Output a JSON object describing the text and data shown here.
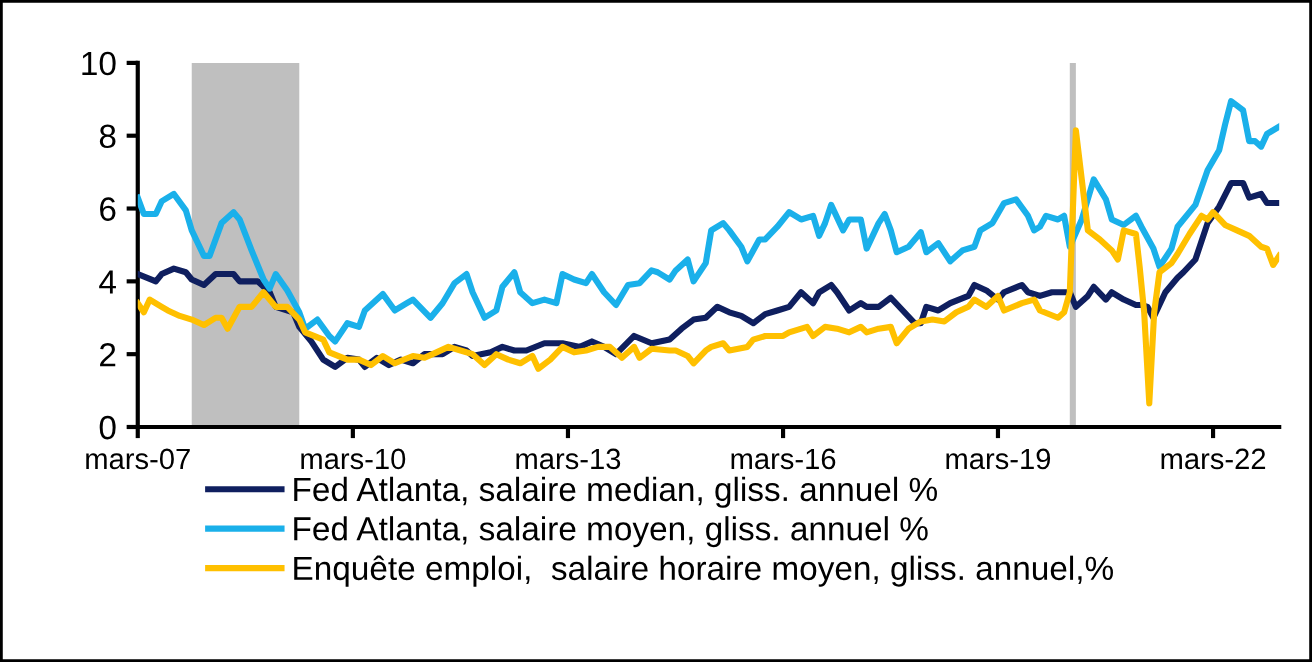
{
  "chart_data": {
    "type": "line",
    "xlim": [
      "2007-03",
      "2023-02"
    ],
    "xticks": [
      {
        "value": "2007-03",
        "label": "mars-07"
      },
      {
        "value": "2010-03",
        "label": "mars-10"
      },
      {
        "value": "2013-03",
        "label": "mars-13"
      },
      {
        "value": "2016-03",
        "label": "mars-16"
      },
      {
        "value": "2019-03",
        "label": "mars-19"
      },
      {
        "value": "2022-03",
        "label": "mars-22"
      }
    ],
    "ylim": [
      0,
      10
    ],
    "yticks": [
      0,
      2,
      4,
      6,
      8,
      10
    ],
    "grid": false,
    "legend": "bottom",
    "line_style": "solid",
    "marker": "none",
    "bands": [
      {
        "axis": "x",
        "from": "2007-12",
        "to": "2009-06",
        "color": "#bfbfbf"
      },
      {
        "axis": "x",
        "from": "2020-03",
        "to": "2020-04",
        "color": "#bfbfbf"
      }
    ],
    "series": [
      {
        "name": "Fed Atlanta, salaire median, gliss. annuel %",
        "color": "#0f1f5f",
        "x": [
          "2007-03",
          "2007-06",
          "2007-07",
          "2007-09",
          "2007-11",
          "2007-12",
          "2008-02",
          "2008-04",
          "2008-07",
          "2008-08",
          "2008-11",
          "2009-01",
          "2009-02",
          "2009-05",
          "2009-06",
          "2009-08",
          "2009-10",
          "2009-12",
          "2010-02",
          "2010-04",
          "2010-05",
          "2010-07",
          "2010-09",
          "2010-11",
          "2011-01",
          "2011-03",
          "2011-06",
          "2011-08",
          "2011-10",
          "2011-11",
          "2012-02",
          "2012-04",
          "2012-06",
          "2012-08",
          "2012-11",
          "2013-02",
          "2013-05",
          "2013-07",
          "2013-09",
          "2013-11",
          "2014-02",
          "2014-05",
          "2014-08",
          "2014-10",
          "2014-12",
          "2015-02",
          "2015-04",
          "2015-06",
          "2015-08",
          "2015-10",
          "2015-12",
          "2016-02",
          "2016-04",
          "2016-06",
          "2016-08",
          "2016-09",
          "2016-11",
          "2016-12",
          "2017-02",
          "2017-04",
          "2017-05",
          "2017-07",
          "2017-09",
          "2017-11",
          "2018-01",
          "2018-02",
          "2018-03",
          "2018-05",
          "2018-07",
          "2018-10",
          "2018-11",
          "2019-01",
          "2019-03",
          "2019-04",
          "2019-07",
          "2019-08",
          "2019-10",
          "2019-12",
          "2020-01",
          "2020-03",
          "2020-04",
          "2020-06",
          "2020-07",
          "2020-09",
          "2020-10",
          "2020-12",
          "2021-02",
          "2021-03",
          "2021-04",
          "2021-05",
          "2021-07",
          "2021-09",
          "2021-10",
          "2021-12",
          "2022-02",
          "2022-04",
          "2022-06",
          "2022-08",
          "2022-09",
          "2022-11",
          "2022-12",
          "2023-02"
        ],
        "values": [
          4.2,
          4.0,
          4.2,
          4.35,
          4.25,
          4.05,
          3.9,
          4.2,
          4.2,
          4.0,
          4.0,
          3.7,
          3.3,
          3.15,
          2.75,
          2.35,
          1.85,
          1.65,
          1.9,
          1.85,
          1.65,
          1.9,
          1.7,
          1.85,
          1.75,
          2.0,
          2.0,
          2.2,
          2.1,
          1.95,
          2.05,
          2.2,
          2.1,
          2.1,
          2.3,
          2.3,
          2.2,
          2.35,
          2.2,
          2.0,
          2.5,
          2.3,
          2.4,
          2.7,
          2.95,
          3.0,
          3.3,
          3.15,
          3.05,
          2.85,
          3.1,
          3.2,
          3.3,
          3.7,
          3.4,
          3.7,
          3.9,
          3.7,
          3.2,
          3.4,
          3.3,
          3.3,
          3.55,
          3.2,
          2.85,
          2.85,
          3.3,
          3.2,
          3.4,
          3.6,
          3.9,
          3.75,
          3.5,
          3.7,
          3.9,
          3.7,
          3.6,
          3.7,
          3.7,
          3.7,
          3.3,
          3.6,
          3.85,
          3.5,
          3.7,
          3.5,
          3.35,
          3.35,
          3.3,
          3.0,
          3.7,
          4.1,
          4.25,
          4.6,
          5.6,
          6.05,
          6.7,
          6.7,
          6.3,
          6.4,
          6.15,
          6.15
        ]
      },
      {
        "name": "Fed Atlanta, salaire moyen, gliss. annuel %",
        "color": "#1ab0ea",
        "x": [
          "2007-03",
          "2007-04",
          "2007-06",
          "2007-07",
          "2007-09",
          "2007-11",
          "2007-12",
          "2008-02",
          "2008-03",
          "2008-05",
          "2008-07",
          "2008-08",
          "2008-10",
          "2008-12",
          "2009-01",
          "2009-02",
          "2009-04",
          "2009-06",
          "2009-07",
          "2009-09",
          "2009-11",
          "2009-12",
          "2010-02",
          "2010-04",
          "2010-05",
          "2010-08",
          "2010-10",
          "2010-12",
          "2011-01",
          "2011-04",
          "2011-06",
          "2011-08",
          "2011-10",
          "2011-11",
          "2012-01",
          "2012-03",
          "2012-04",
          "2012-06",
          "2012-07",
          "2012-09",
          "2012-11",
          "2013-01",
          "2013-02",
          "2013-04",
          "2013-06",
          "2013-07",
          "2013-09",
          "2013-11",
          "2014-01",
          "2014-03",
          "2014-05",
          "2014-06",
          "2014-08",
          "2014-09",
          "2014-11",
          "2014-12",
          "2015-02",
          "2015-03",
          "2015-05",
          "2015-06",
          "2015-08",
          "2015-09",
          "2015-11",
          "2015-12",
          "2016-02",
          "2016-04",
          "2016-06",
          "2016-08",
          "2016-09",
          "2016-10",
          "2016-11",
          "2017-01",
          "2017-02",
          "2017-04",
          "2017-05",
          "2017-07",
          "2017-08",
          "2017-09",
          "2017-10",
          "2017-12",
          "2018-02",
          "2018-03",
          "2018-05",
          "2018-07",
          "2018-09",
          "2018-11",
          "2018-12",
          "2019-02",
          "2019-04",
          "2019-06",
          "2019-08",
          "2019-09",
          "2019-10",
          "2019-11",
          "2020-01",
          "2020-02",
          "2020-03",
          "2020-05",
          "2020-07",
          "2020-09",
          "2020-10",
          "2020-12",
          "2021-02",
          "2021-03",
          "2021-05",
          "2021-06",
          "2021-08",
          "2021-09",
          "2021-12",
          "2022-02",
          "2022-04",
          "2022-05",
          "2022-06",
          "2022-08",
          "2022-09",
          "2022-10",
          "2022-11",
          "2022-12",
          "2023-02"
        ],
        "values": [
          6.3,
          5.85,
          5.85,
          6.2,
          6.4,
          5.95,
          5.4,
          4.7,
          4.7,
          5.6,
          5.9,
          5.7,
          4.85,
          4.05,
          3.8,
          4.2,
          3.75,
          3.15,
          2.7,
          2.95,
          2.5,
          2.35,
          2.85,
          2.75,
          3.2,
          3.65,
          3.2,
          3.4,
          3.5,
          3.0,
          3.4,
          3.95,
          4.2,
          3.7,
          3.0,
          3.2,
          3.85,
          4.25,
          3.7,
          3.4,
          3.5,
          3.4,
          4.2,
          4.05,
          3.95,
          4.2,
          3.7,
          3.35,
          3.9,
          3.95,
          4.3,
          4.25,
          4.05,
          4.3,
          4.6,
          4.0,
          4.5,
          5.4,
          5.6,
          5.4,
          4.95,
          4.55,
          5.15,
          5.15,
          5.5,
          5.9,
          5.7,
          5.8,
          5.25,
          5.6,
          6.1,
          5.4,
          5.7,
          5.7,
          4.9,
          5.6,
          5.85,
          5.4,
          4.8,
          4.95,
          5.35,
          4.8,
          5.05,
          4.55,
          4.85,
          4.95,
          5.4,
          5.6,
          6.15,
          6.25,
          5.8,
          5.4,
          5.5,
          5.8,
          5.7,
          5.8,
          4.95,
          5.7,
          6.8,
          6.25,
          5.7,
          5.55,
          5.8,
          5.5,
          4.9,
          4.4,
          4.9,
          5.5,
          6.1,
          7.05,
          7.6,
          8.3,
          8.95,
          8.7,
          7.85,
          7.85,
          7.7,
          8.05,
          8.25
        ]
      },
      {
        "name": "Enquête emploi,  salaire horaire moyen, gliss. annuel,%",
        "color": "#ffc000",
        "x": [
          "2007-03",
          "2007-04",
          "2007-05",
          "2007-07",
          "2007-08",
          "2007-10",
          "2007-12",
          "2008-02",
          "2008-04",
          "2008-05",
          "2008-06",
          "2008-08",
          "2008-10",
          "2008-12",
          "2009-02",
          "2009-04",
          "2009-06",
          "2009-07",
          "2009-10",
          "2009-11",
          "2010-02",
          "2010-04",
          "2010-06",
          "2010-08",
          "2010-10",
          "2011-01",
          "2011-03",
          "2011-05",
          "2011-07",
          "2011-09",
          "2011-11",
          "2012-01",
          "2012-03",
          "2012-05",
          "2012-07",
          "2012-09",
          "2012-10",
          "2012-12",
          "2013-02",
          "2013-04",
          "2013-06",
          "2013-08",
          "2013-10",
          "2013-12",
          "2014-02",
          "2014-03",
          "2014-05",
          "2014-08",
          "2014-09",
          "2014-11",
          "2014-12",
          "2015-02",
          "2015-03",
          "2015-05",
          "2015-06",
          "2015-09",
          "2015-10",
          "2015-12",
          "2016-03",
          "2016-04",
          "2016-07",
          "2016-08",
          "2016-10",
          "2016-12",
          "2017-02",
          "2017-04",
          "2017-05",
          "2017-07",
          "2017-09",
          "2017-10",
          "2017-12",
          "2018-02",
          "2018-04",
          "2018-06",
          "2018-08",
          "2018-10",
          "2018-11",
          "2019-01",
          "2019-03",
          "2019-04",
          "2019-07",
          "2019-09",
          "2019-10",
          "2020-01",
          "2020-02",
          "2020-03",
          "2020-04",
          "2020-05",
          "2020-06",
          "2020-08",
          "2020-10",
          "2020-11",
          "2020-12",
          "2021-02",
          "2021-02-20",
          "2021-03-15",
          "2021-04-10",
          "2021-05-05",
          "2021-06-01",
          "2021-08",
          "2021-09",
          "2021-11",
          "2022-01",
          "2022-02",
          "2022-03",
          "2022-05",
          "2022-07",
          "2022-09",
          "2022-11",
          "2022-12",
          "2023-01",
          "2023-02"
        ],
        "values": [
          3.4,
          3.15,
          3.5,
          3.3,
          3.2,
          3.05,
          2.95,
          2.8,
          3.0,
          3.0,
          2.7,
          3.3,
          3.3,
          3.7,
          3.3,
          3.3,
          2.95,
          2.6,
          2.4,
          2.05,
          1.85,
          1.85,
          1.7,
          1.95,
          1.75,
          1.95,
          1.9,
          2.05,
          2.2,
          2.1,
          2.0,
          1.7,
          2.0,
          1.85,
          1.75,
          1.95,
          1.6,
          1.85,
          2.2,
          2.05,
          2.1,
          2.2,
          2.2,
          1.9,
          2.2,
          1.9,
          2.15,
          2.1,
          2.1,
          1.95,
          1.75,
          2.1,
          2.2,
          2.3,
          2.1,
          2.2,
          2.4,
          2.5,
          2.5,
          2.6,
          2.75,
          2.5,
          2.75,
          2.7,
          2.6,
          2.75,
          2.6,
          2.7,
          2.75,
          2.3,
          2.7,
          2.9,
          2.95,
          2.9,
          3.15,
          3.3,
          3.5,
          3.3,
          3.6,
          3.2,
          3.4,
          3.5,
          3.2,
          3.0,
          3.15,
          3.7,
          8.15,
          6.8,
          5.4,
          5.15,
          4.85,
          4.6,
          5.4,
          5.3,
          4.4,
          3.15,
          0.65,
          3.15,
          4.25,
          4.5,
          4.75,
          5.3,
          5.8,
          5.7,
          5.9,
          5.55,
          5.4,
          5.25,
          4.95,
          4.9,
          4.45,
          4.7
        ]
      }
    ]
  }
}
